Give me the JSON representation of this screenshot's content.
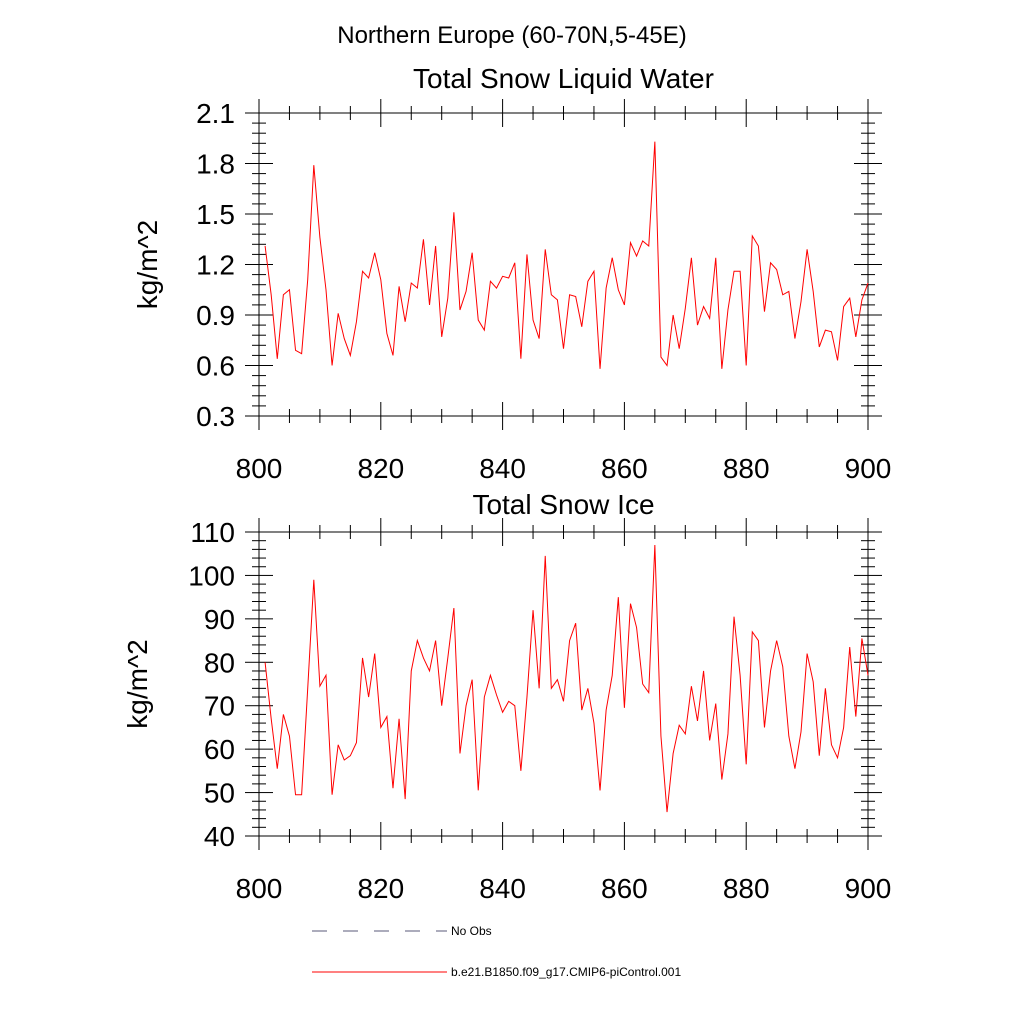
{
  "figure": {
    "suptitle": "Northern Europe (60-70N,5-45E)"
  },
  "legend": [
    {
      "label": "No Obs",
      "color": "#5a5a78",
      "dash": true
    },
    {
      "label": "b.e21.B1850.f09_g17.CMIP6-piControl.001",
      "color": "#ff0000",
      "dash": false
    }
  ],
  "chart_data": [
    {
      "type": "line",
      "title": "Total Snow Liquid Water",
      "xlabel": "",
      "ylabel": "kg/m^2",
      "xlim": [
        800,
        900
      ],
      "ylim": [
        0.3,
        2.1
      ],
      "xticks": [
        800,
        820,
        840,
        860,
        880,
        900
      ],
      "yticks": [
        0.3,
        0.6,
        0.9,
        1.2,
        1.5,
        1.8,
        2.1
      ],
      "ytick_labels": [
        "0.3",
        "0.6",
        "0.9",
        "1.2",
        "1.5",
        "1.8",
        "2.1"
      ],
      "series": [
        {
          "name": "b.e21.B1850.f09_g17.CMIP6-piControl.001",
          "color": "#ff0000",
          "x": [
            801,
            802,
            803,
            804,
            805,
            806,
            807,
            808,
            809,
            810,
            811,
            812,
            813,
            814,
            815,
            816,
            817,
            818,
            819,
            820,
            821,
            822,
            823,
            824,
            825,
            826,
            827,
            828,
            829,
            830,
            831,
            832,
            833,
            834,
            835,
            836,
            837,
            838,
            839,
            840,
            841,
            842,
            843,
            844,
            845,
            846,
            847,
            848,
            849,
            850,
            851,
            852,
            853,
            854,
            855,
            856,
            857,
            858,
            859,
            860,
            861,
            862,
            863,
            864,
            865,
            866,
            867,
            868,
            869,
            870,
            871,
            872,
            873,
            874,
            875,
            876,
            877,
            878,
            879,
            880,
            881,
            882,
            883,
            884,
            885,
            886,
            887,
            888,
            889,
            890,
            891,
            892,
            893,
            894,
            895,
            896,
            897,
            898,
            899,
            900
          ],
          "values": [
            1.31,
            1.02,
            0.64,
            1.02,
            1.05,
            0.69,
            0.67,
            1.11,
            1.79,
            1.36,
            1.05,
            0.6,
            0.91,
            0.76,
            0.66,
            0.86,
            1.16,
            1.12,
            1.27,
            1.11,
            0.79,
            0.66,
            1.07,
            0.86,
            1.09,
            1.06,
            1.35,
            0.96,
            1.31,
            0.77,
            1.0,
            1.51,
            0.93,
            1.04,
            1.27,
            0.87,
            0.81,
            1.1,
            1.06,
            1.13,
            1.12,
            1.21,
            0.64,
            1.26,
            0.87,
            0.76,
            1.29,
            1.02,
            0.99,
            0.7,
            1.02,
            1.01,
            0.83,
            1.1,
            1.16,
            0.58,
            1.06,
            1.24,
            1.05,
            0.96,
            1.33,
            1.25,
            1.34,
            1.31,
            1.93,
            0.65,
            0.6,
            0.9,
            0.7,
            0.94,
            1.24,
            0.84,
            0.95,
            0.88,
            1.24,
            0.58,
            0.93,
            1.16,
            1.16,
            0.6,
            1.37,
            1.31,
            0.92,
            1.21,
            1.17,
            1.02,
            1.04,
            0.76,
            0.98,
            1.29,
            1.04,
            0.71,
            0.81,
            0.8,
            0.63,
            0.95,
            1.0,
            0.77,
            0.99,
            1.09
          ]
        }
      ]
    },
    {
      "type": "line",
      "title": "Total Snow Ice",
      "xlabel": "",
      "ylabel": "kg/m^2",
      "xlim": [
        800,
        900
      ],
      "ylim": [
        40,
        110
      ],
      "xticks": [
        800,
        820,
        840,
        860,
        880,
        900
      ],
      "yticks": [
        40,
        50,
        60,
        70,
        80,
        90,
        100,
        110
      ],
      "ytick_labels": [
        "40",
        "50",
        "60",
        "70",
        "80",
        "90",
        "100",
        "110"
      ],
      "series": [
        {
          "name": "b.e21.B1850.f09_g17.CMIP6-piControl.001",
          "color": "#ff0000",
          "x": [
            801,
            802,
            803,
            804,
            805,
            806,
            807,
            808,
            809,
            810,
            811,
            812,
            813,
            814,
            815,
            816,
            817,
            818,
            819,
            820,
            821,
            822,
            823,
            824,
            825,
            826,
            827,
            828,
            829,
            830,
            831,
            832,
            833,
            834,
            835,
            836,
            837,
            838,
            839,
            840,
            841,
            842,
            843,
            844,
            845,
            846,
            847,
            848,
            849,
            850,
            851,
            852,
            853,
            854,
            855,
            856,
            857,
            858,
            859,
            860,
            861,
            862,
            863,
            864,
            865,
            866,
            867,
            868,
            869,
            870,
            871,
            872,
            873,
            874,
            875,
            876,
            877,
            878,
            879,
            880,
            881,
            882,
            883,
            884,
            885,
            886,
            887,
            888,
            889,
            890,
            891,
            892,
            893,
            894,
            895,
            896,
            897,
            898,
            899,
            900
          ],
          "values": [
            80,
            67,
            55.5,
            68,
            63,
            49.5,
            49.5,
            74,
            99,
            74.5,
            77,
            49.5,
            61,
            57.5,
            58.5,
            61.5,
            81,
            72,
            82,
            65,
            67.5,
            51,
            67,
            48.5,
            78,
            85,
            81,
            78,
            85,
            70,
            81,
            92.5,
            59,
            70,
            76,
            50.5,
            72,
            77,
            72.5,
            68.5,
            71,
            70,
            55,
            72,
            92,
            74,
            104.5,
            74,
            76,
            71,
            85,
            89,
            69,
            74,
            66,
            50.5,
            69,
            77,
            95,
            69.5,
            93.5,
            88,
            75,
            73,
            107,
            63,
            45.5,
            59,
            65.5,
            63.5,
            74.5,
            66.5,
            78,
            62,
            70.5,
            53,
            63.5,
            90.5,
            77,
            56.5,
            87,
            85,
            65,
            78,
            85,
            79,
            63,
            55.5,
            64,
            82,
            75.5,
            58.5,
            74,
            61,
            58,
            65,
            83.5,
            67.5,
            85.5,
            77
          ]
        }
      ]
    }
  ]
}
